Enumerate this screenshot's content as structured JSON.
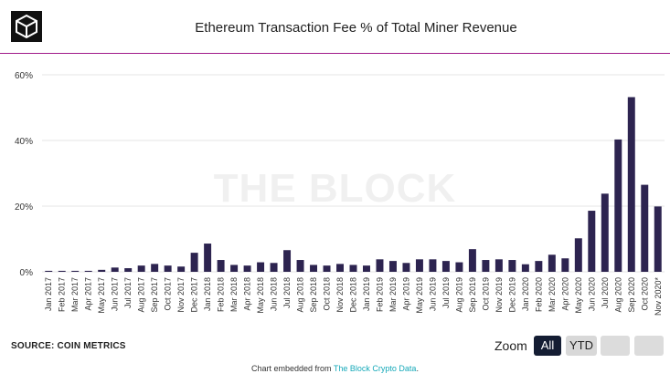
{
  "header": {
    "title": "Ethereum Transaction Fee % of Total Miner Revenue"
  },
  "watermark": "THE BLOCK",
  "footer": {
    "source": "SOURCE: COIN METRICS",
    "zoom_label": "Zoom",
    "zoom_buttons": [
      "All",
      "YTD"
    ],
    "embed_prefix": "Chart embedded from ",
    "embed_link": "The Block Crypto Data",
    "embed_suffix": "."
  },
  "colors": {
    "bar": "#2d2450",
    "accent": "#a0198a",
    "grid": "#e6e6e6",
    "button_active": "#141d33",
    "link": "#16a9b9"
  },
  "chart_data": {
    "type": "bar",
    "title": "Ethereum Transaction Fee % of Total Miner Revenue",
    "xlabel": "",
    "ylabel": "",
    "ylim": [
      0,
      60
    ],
    "yticks": [
      0,
      20,
      40,
      60
    ],
    "ytick_labels": [
      "0%",
      "20%",
      "40%",
      "60%"
    ],
    "grid": true,
    "categories": [
      "Jan 2017",
      "Feb 2017",
      "Mar 2017",
      "Apr 2017",
      "May 2017",
      "Jun 2017",
      "Jul 2017",
      "Aug 2017",
      "Sep 2017",
      "Oct 2017",
      "Nov 2017",
      "Dec 2017",
      "Jan 2018",
      "Feb 2018",
      "Mar 2018",
      "Apr 2018",
      "May 2018",
      "Jun 2018",
      "Jul 2018",
      "Aug 2018",
      "Sep 2018",
      "Oct 2018",
      "Nov 2018",
      "Dec 2018",
      "Jan 2019",
      "Feb 2019",
      "Mar 2019",
      "Apr 2019",
      "May 2019",
      "Jun 2019",
      "Jul 2019",
      "Aug 2019",
      "Sep 2019",
      "Oct 2019",
      "Nov 2019",
      "Dec 2019",
      "Jan 2020",
      "Feb 2020",
      "Mar 2020",
      "Apr 2020",
      "May 2020",
      "Jun 2020",
      "Jul 2020",
      "Aug 2020",
      "Sep 2020",
      "Oct 2020",
      "Nov 2020*"
    ],
    "values": [
      0.3,
      0.3,
      0.3,
      0.3,
      0.6,
      1.3,
      1.1,
      1.9,
      2.4,
      1.9,
      1.6,
      5.8,
      8.6,
      3.6,
      2.1,
      1.9,
      2.9,
      2.7,
      6.6,
      3.6,
      2.1,
      1.9,
      2.4,
      2.1,
      1.9,
      3.8,
      3.3,
      2.7,
      3.8,
      3.8,
      3.3,
      2.9,
      6.9,
      3.6,
      3.8,
      3.6,
      2.3,
      3.3,
      5.2,
      4.1,
      10.2,
      18.6,
      23.8,
      40.3,
      53.2,
      26.5,
      19.9
    ]
  }
}
